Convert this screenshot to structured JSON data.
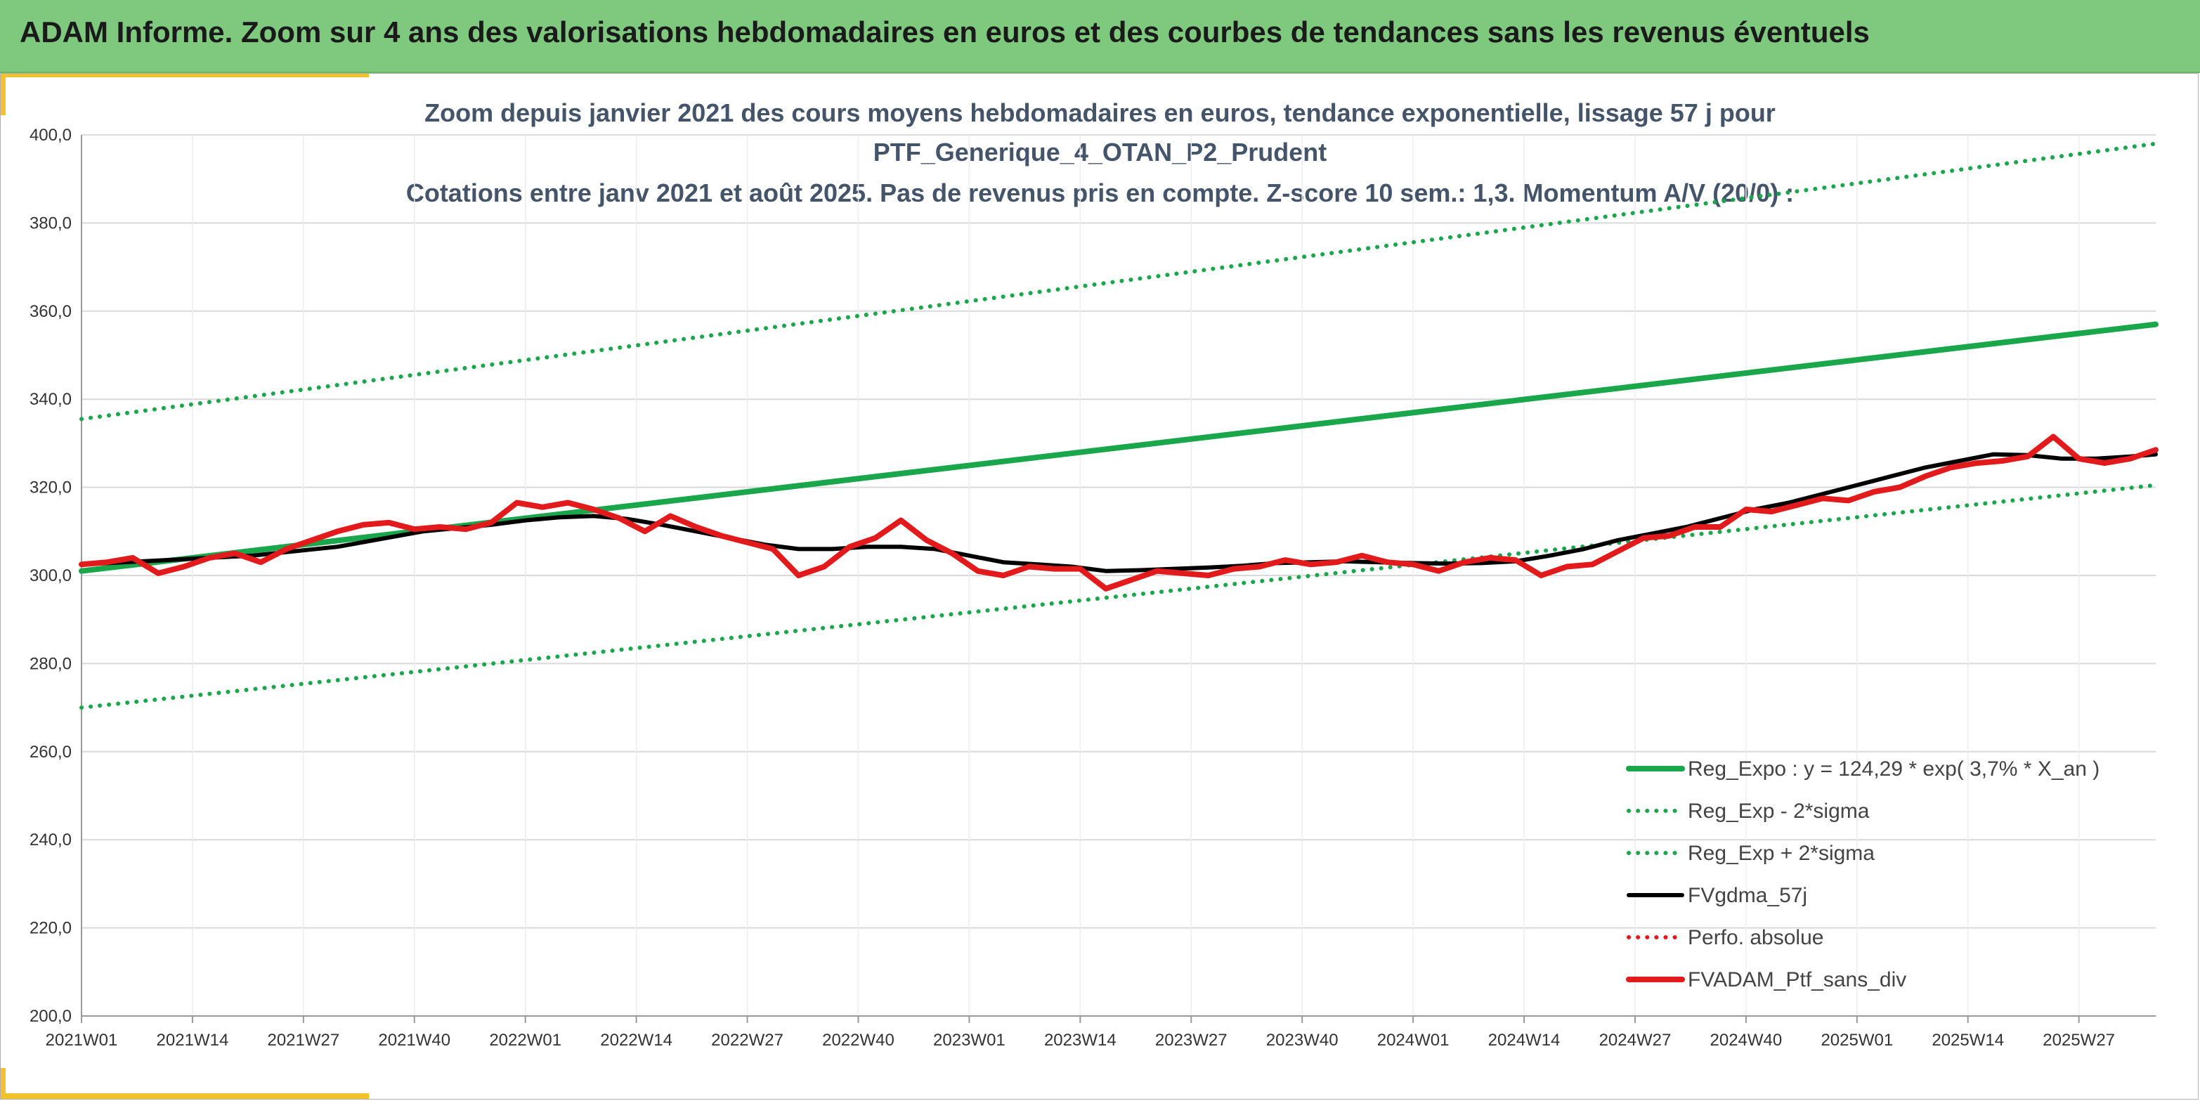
{
  "banner": {
    "title": "ADAM Informe. Zoom sur 4 ans des valorisations hebdomadaires en euros et des courbes de tendances sans les revenus éventuels"
  },
  "colors": {
    "banner": "#7fc97f",
    "accent_yellow": "#f2c22a",
    "trend_green": "#1aa64a",
    "sigma_green": "#1aa64a",
    "smooth_black": "#000000",
    "perf_red": "#e31a1c",
    "title_text": "#44546a"
  },
  "chart_data": {
    "type": "line",
    "title_lines": [
      "Zoom depuis janvier 2021 des cours moyens hebdomadaires en euros, tendance exponentielle, lissage 57 j pour",
      "PTF_Generique_4_OTAN_P2_Prudent",
      "Cotations entre janv 2021 et août 2025. Pas de revenus pris en compte. Z-score 10 sem.: 1,3. Momentum A/V (20/0) :"
    ],
    "ylim": [
      200,
      400
    ],
    "y_ticks": [
      "200,0",
      "220,0",
      "240,0",
      "260,0",
      "280,0",
      "300,0",
      "320,0",
      "340,0",
      "360,0",
      "380,0",
      "400,0"
    ],
    "x_ticks": [
      "2021W01",
      "2021W14",
      "2021W27",
      "2021W40",
      "2022W01",
      "2022W14",
      "2022W27",
      "2022W40",
      "2023W01",
      "2023W14",
      "2023W27",
      "2023W40",
      "2024W01",
      "2024W14",
      "2024W27",
      "2024W40",
      "2025W01",
      "2025W14",
      "2025W27"
    ],
    "x_unit": "week index from 2021W01",
    "x_max": 243,
    "grid": true,
    "legend_position": "bottom-right",
    "series": [
      {
        "name": "Reg_Expo : y = 124,29 * exp( 3,7% *  X_an )",
        "style": "solid-thick",
        "color": "#1aa64a",
        "x": [
          0,
          243
        ],
        "values": [
          301.0,
          357.0
        ]
      },
      {
        "name": "Reg_Exp - 2*sigma",
        "style": "dotted",
        "color": "#1aa64a",
        "x": [
          0,
          243
        ],
        "values": [
          270.0,
          320.5
        ]
      },
      {
        "name": "Reg_Exp + 2*sigma",
        "style": "dotted",
        "color": "#1aa64a",
        "x": [
          0,
          243
        ],
        "values": [
          335.5,
          398.0
        ]
      },
      {
        "name": "FVgdma_57j",
        "style": "solid",
        "color": "#000000",
        "x": [
          0,
          10,
          20,
          30,
          40,
          48,
          52,
          56,
          60,
          64,
          68,
          72,
          76,
          80,
          84,
          88,
          92,
          96,
          100,
          104,
          108,
          112,
          116,
          120,
          124,
          128,
          132,
          136,
          140,
          144,
          148,
          152,
          156,
          160,
          164,
          168,
          172,
          176,
          180,
          184,
          188,
          192,
          196,
          200,
          204,
          208,
          212,
          216,
          220,
          224,
          228,
          232,
          236,
          240,
          243
        ],
        "values": [
          302.5,
          303.5,
          304.5,
          306.5,
          310.0,
          311.5,
          312.5,
          313.2,
          313.5,
          312.8,
          311.5,
          310.0,
          308.5,
          307.0,
          306.0,
          306.0,
          306.5,
          306.5,
          306.0,
          304.5,
          303.0,
          302.5,
          302.0,
          301.0,
          301.2,
          301.5,
          301.8,
          302.2,
          302.8,
          303.0,
          303.2,
          303.0,
          302.8,
          302.7,
          302.8,
          303.2,
          304.5,
          306.0,
          308.0,
          309.5,
          311.0,
          313.0,
          315.0,
          316.5,
          318.5,
          320.5,
          322.5,
          324.5,
          326.0,
          327.5,
          327.3,
          326.5,
          326.5,
          327.0,
          327.5
        ]
      },
      {
        "name": "Perfo. absolue",
        "style": "dotted",
        "color": "#e31a1c",
        "x": [],
        "values": []
      },
      {
        "name": "FVADAM_Ptf_sans_div",
        "style": "solid-thick",
        "color": "#e31a1c",
        "x": [
          0,
          3,
          6,
          9,
          12,
          15,
          18,
          21,
          24,
          27,
          30,
          33,
          36,
          39,
          42,
          45,
          48,
          51,
          54,
          57,
          60,
          63,
          66,
          69,
          72,
          75,
          78,
          81,
          84,
          87,
          90,
          93,
          96,
          99,
          102,
          105,
          108,
          111,
          114,
          117,
          120,
          123,
          126,
          129,
          132,
          135,
          138,
          141,
          144,
          147,
          150,
          153,
          156,
          159,
          162,
          165,
          168,
          171,
          174,
          177,
          180,
          183,
          186,
          189,
          192,
          195,
          198,
          201,
          204,
          207,
          210,
          213,
          216,
          219,
          222,
          225,
          228,
          231,
          234,
          237,
          240,
          243
        ],
        "values": [
          302.5,
          303.0,
          304.0,
          300.5,
          302.0,
          304.0,
          305.0,
          303.0,
          306.0,
          308.0,
          310.0,
          311.5,
          312.0,
          310.5,
          311.0,
          310.5,
          312.0,
          316.5,
          315.5,
          316.5,
          315.0,
          313.0,
          310.0,
          313.5,
          311.0,
          309.0,
          307.5,
          306.0,
          300.0,
          302.0,
          306.5,
          308.5,
          312.5,
          308.0,
          305.0,
          301.0,
          300.0,
          302.0,
          301.5,
          301.5,
          297.0,
          299.0,
          301.0,
          300.5,
          300.0,
          301.5,
          302.0,
          303.5,
          302.5,
          303.0,
          304.5,
          303.0,
          302.5,
          301.0,
          303.0,
          304.0,
          303.5,
          300.0,
          302.0,
          302.5,
          305.5,
          308.5,
          309.0,
          311.0,
          311.0,
          315.0,
          314.5,
          316.0,
          317.5,
          317.0,
          319.0,
          320.0,
          322.5,
          324.5,
          325.5,
          326.0,
          327.0,
          331.5,
          326.5,
          325.5,
          326.5,
          328.5
        ]
      }
    ]
  }
}
